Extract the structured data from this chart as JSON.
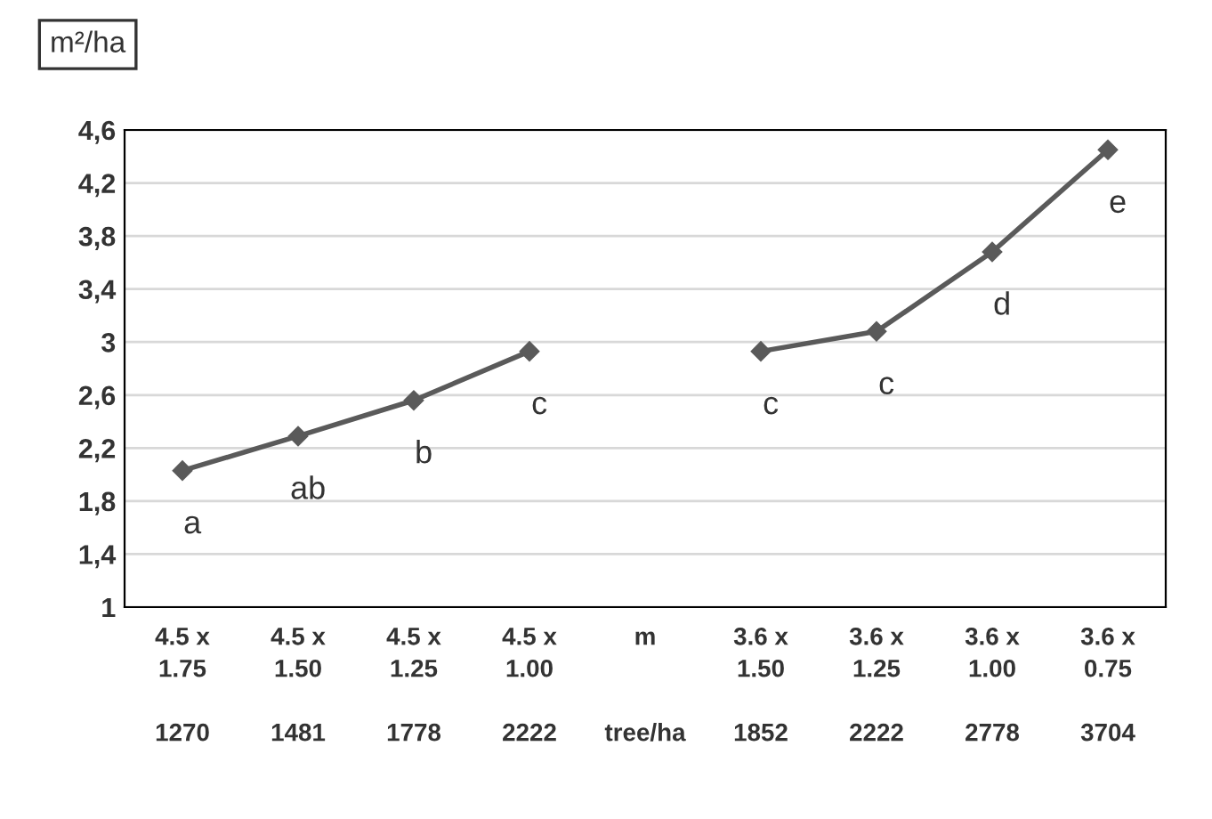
{
  "chart_data": {
    "type": "line",
    "ylabel": "m²/ha",
    "categories": [
      "4.5 x\n1.75\n\n1270",
      "4.5 x\n1.50\n\n1481",
      "4.5 x\n1.25\n\n1778",
      "4.5 x\n1.00\n\n2222",
      "m\n\n\ntree/ha",
      "3.6 x\n1.50\n\n1852",
      "3.6 x\n1.25\n\n2222",
      "3.6 x\n1.00\n\n2778",
      "3.6 x\n0.75\n\n3704"
    ],
    "series": [
      {
        "color": "#5a5a5a",
        "values": [
          2.03,
          2.29,
          2.56,
          2.93,
          null,
          2.93,
          3.08,
          3.68,
          4.45
        ]
      }
    ],
    "ylim": [
      1,
      4.6
    ],
    "yticks": [
      1,
      {
        "value": 1.4,
        "label": "1,4"
      },
      {
        "value": 1.8,
        "label": "1,8"
      },
      {
        "value": 2.2,
        "label": "2,2"
      },
      {
        "value": 2.6,
        "label": "2,6"
      },
      3,
      {
        "value": 3.4,
        "label": "3,4"
      },
      {
        "value": 3.8,
        "label": "3,8"
      },
      {
        "value": 4.2,
        "label": "4,2"
      },
      {
        "value": 4.6,
        "label": "4,6"
      }
    ],
    "grid": "y",
    "marker": "diamond",
    "line_style": "solid",
    "annotations": [
      "a",
      "ab",
      "b",
      "c",
      "c",
      "c",
      "d",
      "e"
    ]
  }
}
